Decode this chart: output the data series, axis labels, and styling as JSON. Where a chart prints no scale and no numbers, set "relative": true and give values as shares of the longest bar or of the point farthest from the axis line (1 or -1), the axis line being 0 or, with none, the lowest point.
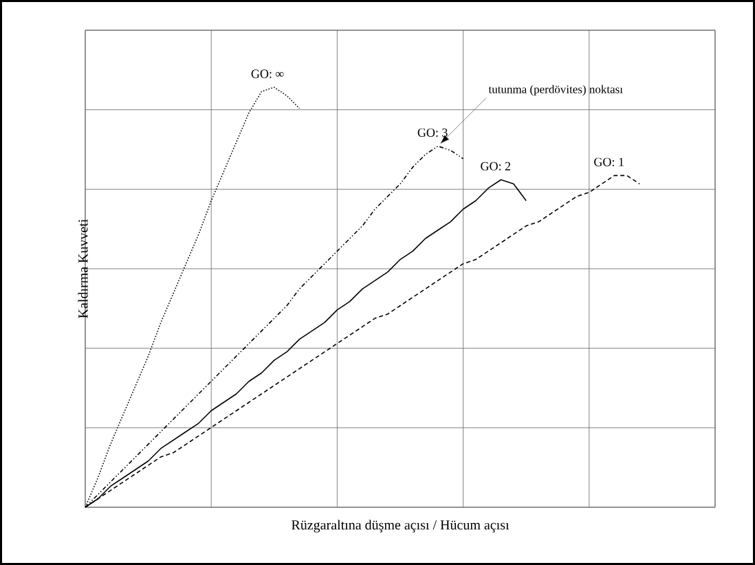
{
  "chart_data": {
    "type": "line",
    "xlabel": "Rüzgaraltına düşme açısı / Hücum açısı",
    "ylabel": "Kaldırma Kuvveti",
    "relative": true,
    "categories": [
      null,
      null,
      null,
      null,
      null,
      null,
      null,
      null,
      null,
      null,
      null,
      null,
      null,
      null,
      null,
      null,
      null,
      null,
      null,
      null,
      null,
      null,
      null,
      null,
      null,
      null,
      null,
      null,
      null,
      null,
      null,
      null,
      null,
      null,
      null,
      null,
      null,
      null,
      null,
      null,
      null,
      null,
      null,
      null,
      null,
      null,
      null,
      null,
      null,
      null,
      null
    ],
    "grid": true,
    "marker": "none",
    "series": [
      {
        "name": "GO: ∞",
        "color": "#000000",
        "line_style": "dotted",
        "values": [
          0,
          0.07,
          0.15,
          0.22,
          0.29,
          0.36,
          0.44,
          0.51,
          0.58,
          0.65,
          0.73,
          0.8,
          0.87,
          0.94,
          0.99,
          1.0,
          0.98,
          0.95,
          null,
          null,
          null,
          null,
          null,
          null,
          null,
          null,
          null,
          null,
          null,
          null,
          null,
          null,
          null,
          null,
          null,
          null,
          null,
          null,
          null,
          null,
          null,
          null,
          null,
          null,
          null,
          null,
          null,
          null,
          null,
          null,
          null
        ]
      },
      {
        "name": "GO: 3",
        "color": "#000000",
        "line_style": "dashdotdot",
        "values": [
          0,
          0.03,
          0.06,
          0.09,
          0.12,
          0.15,
          0.18,
          0.21,
          0.24,
          0.27,
          0.3,
          0.33,
          0.36,
          0.39,
          0.42,
          0.45,
          0.48,
          0.52,
          0.55,
          0.58,
          0.61,
          0.64,
          0.67,
          0.71,
          0.74,
          0.77,
          0.81,
          0.84,
          0.86,
          0.85,
          0.83,
          null,
          null,
          null,
          null,
          null,
          null,
          null,
          null,
          null,
          null,
          null,
          null,
          null,
          null,
          null,
          null,
          null,
          null,
          null,
          null
        ]
      },
      {
        "name": "GO: 2",
        "color": "#000000",
        "line_style": "solid",
        "values": [
          0,
          0.02,
          0.05,
          0.07,
          0.09,
          0.11,
          0.14,
          0.16,
          0.18,
          0.2,
          0.23,
          0.25,
          0.27,
          0.3,
          0.32,
          0.35,
          0.37,
          0.4,
          0.42,
          0.44,
          0.47,
          0.49,
          0.52,
          0.54,
          0.56,
          0.59,
          0.61,
          0.64,
          0.66,
          0.68,
          0.71,
          0.73,
          0.76,
          0.78,
          0.77,
          0.73,
          null,
          null,
          null,
          null,
          null,
          null,
          null,
          null,
          null,
          null,
          null,
          null,
          null,
          null,
          null
        ]
      },
      {
        "name": "GO: 1",
        "color": "#000000",
        "line_style": "dashed",
        "values": [
          0,
          0.02,
          0.04,
          0.06,
          0.08,
          0.1,
          0.12,
          0.13,
          0.15,
          0.17,
          0.19,
          0.21,
          0.23,
          0.25,
          0.27,
          0.29,
          0.31,
          0.33,
          0.35,
          0.37,
          0.39,
          0.41,
          0.43,
          0.45,
          0.46,
          0.48,
          0.5,
          0.52,
          0.54,
          0.56,
          0.58,
          0.59,
          0.61,
          0.63,
          0.65,
          0.67,
          0.68,
          0.7,
          0.72,
          0.74,
          0.75,
          0.77,
          0.79,
          0.79,
          0.77,
          null,
          null,
          null,
          null,
          null,
          null
        ]
      }
    ],
    "annotations": [
      "tutunma (perdövites) noktası"
    ]
  }
}
